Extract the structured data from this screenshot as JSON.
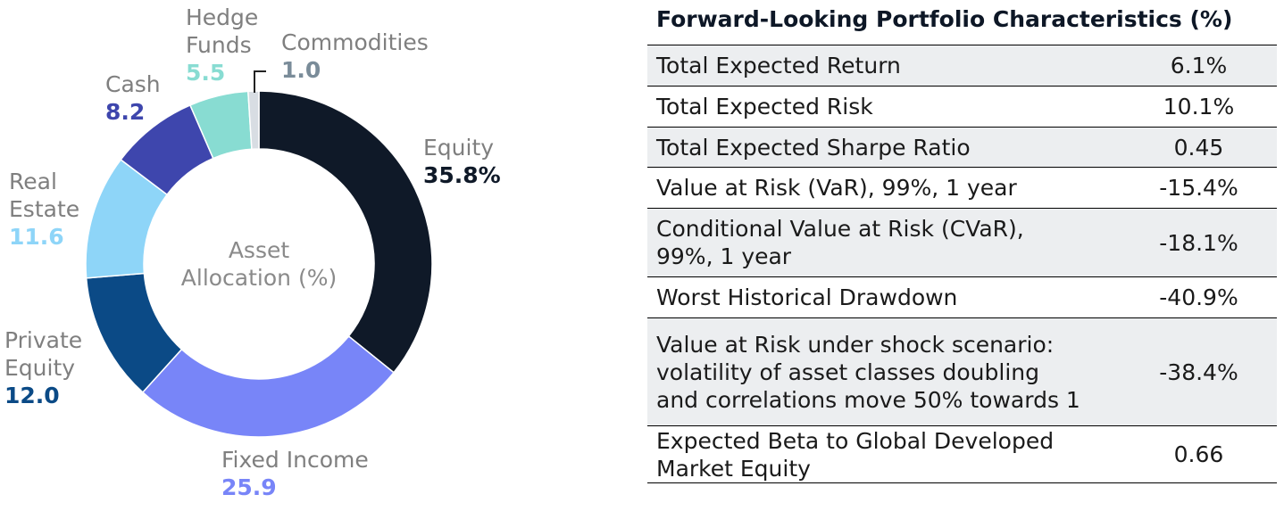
{
  "chart_data": [
    {
      "type": "pie",
      "title": "Asset Allocation (%)",
      "slices": [
        {
          "name": "Equity",
          "value": 35.8,
          "value_label": "35.8%",
          "color": "#0f1928"
        },
        {
          "name": "Fixed Income",
          "value": 25.9,
          "value_label": "25.9",
          "color": "#7885f8"
        },
        {
          "name": "Private Equity",
          "value": 12.0,
          "value_label": "12.0",
          "color": "#0b4a86"
        },
        {
          "name": "Real Estate",
          "value": 11.6,
          "value_label": "11.6",
          "color": "#8ed5f8"
        },
        {
          "name": "Cash",
          "value": 8.2,
          "value_label": "8.2",
          "color": "#3e46ad"
        },
        {
          "name": "Hedge Funds",
          "value": 5.5,
          "value_label": "5.5",
          "color": "#88dcd2"
        },
        {
          "name": "Commodities",
          "value": 1.0,
          "value_label": "1.0",
          "color": "#d8dde3"
        }
      ],
      "label_colors": {
        "Equity": "#0f1928",
        "Fixed Income": "#7885f8",
        "Private Equity": "#0b4a86",
        "Real Estate": "#8ed5f8",
        "Cash": "#3e46ad",
        "Hedge Funds": "#88dcd2",
        "Commodities": "#7a8c99"
      },
      "name_lines": {
        "Equity": [
          "Equity"
        ],
        "Fixed Income": [
          "Fixed Income"
        ],
        "Private Equity": [
          "Private",
          "Equity"
        ],
        "Real Estate": [
          "Real",
          "Estate"
        ],
        "Cash": [
          "Cash"
        ],
        "Hedge Funds": [
          "Hedge",
          "Funds"
        ],
        "Commodities": [
          "Commodities"
        ]
      },
      "center_label": [
        "Asset",
        "Allocation (%)"
      ]
    },
    {
      "type": "table",
      "title": "Forward-Looking Portfolio Characteristics (%)",
      "rows": [
        {
          "metric": [
            "Total Expected Return"
          ],
          "value": "6.1%"
        },
        {
          "metric": [
            "Total Expected Risk"
          ],
          "value": "10.1%"
        },
        {
          "metric": [
            "Total Expected Sharpe Ratio"
          ],
          "value": "0.45"
        },
        {
          "metric": [
            "Value at Risk (VaR), 99%, 1 year"
          ],
          "value": "-15.4%"
        },
        {
          "metric": [
            "Conditional Value at Risk (CVaR),",
            "99%, 1 year"
          ],
          "value": "-18.1%"
        },
        {
          "metric": [
            "Worst Historical Drawdown"
          ],
          "value": "-40.9%"
        },
        {
          "metric": [
            "Value at Risk under shock scenario:",
            "volatility of asset classes doubling",
            "and correlations move 50% towards 1"
          ],
          "value": "-38.4%"
        },
        {
          "metric": [
            "Expected Beta to Global Developed",
            "Market Equity"
          ],
          "value": "0.66"
        }
      ]
    }
  ]
}
